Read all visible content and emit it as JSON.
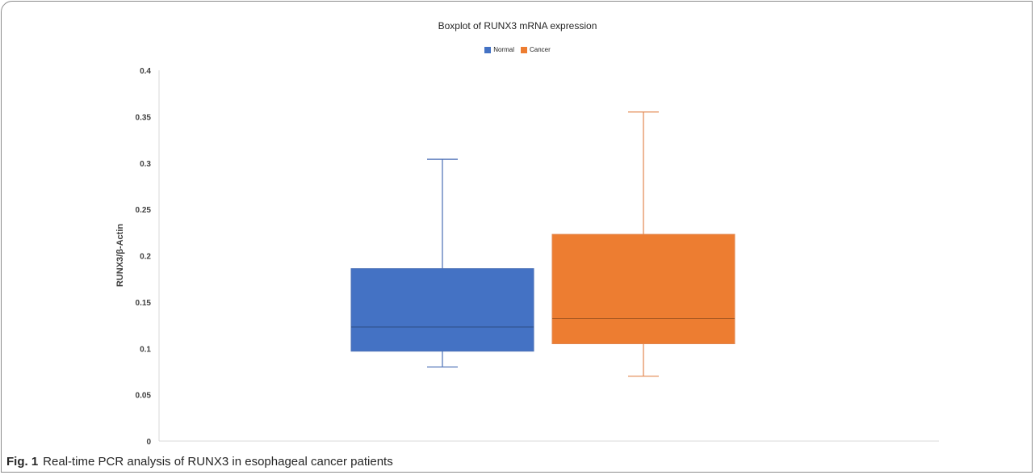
{
  "chart_data": {
    "type": "boxplot",
    "title": "Boxplot of RUNX3 mRNA expression",
    "ylabel": "RUNX3/β-Actin",
    "xlabel": "",
    "ylim": [
      0,
      0.4
    ],
    "y_ticks": [
      "0",
      "0.05",
      "0.1",
      "0.15",
      "0.2",
      "0.25",
      "0.3",
      "0.35",
      "0.4"
    ],
    "legend_position": "top-center",
    "grid": false,
    "series": [
      {
        "name": "Normal",
        "color": "#4472c4",
        "whisker_color": "#4a6fb5",
        "min": 0.08,
        "q1": 0.097,
        "median": 0.123,
        "q3": 0.186,
        "max": 0.304
      },
      {
        "name": "Cancer",
        "color": "#ed7d31",
        "whisker_color": "#e2874f",
        "min": 0.07,
        "q1": 0.105,
        "median": 0.132,
        "q3": 0.223,
        "max": 0.355
      }
    ]
  },
  "caption": {
    "label": "Fig. 1",
    "text": "Real-time PCR analysis of RUNX3 in esophageal cancer patients"
  }
}
